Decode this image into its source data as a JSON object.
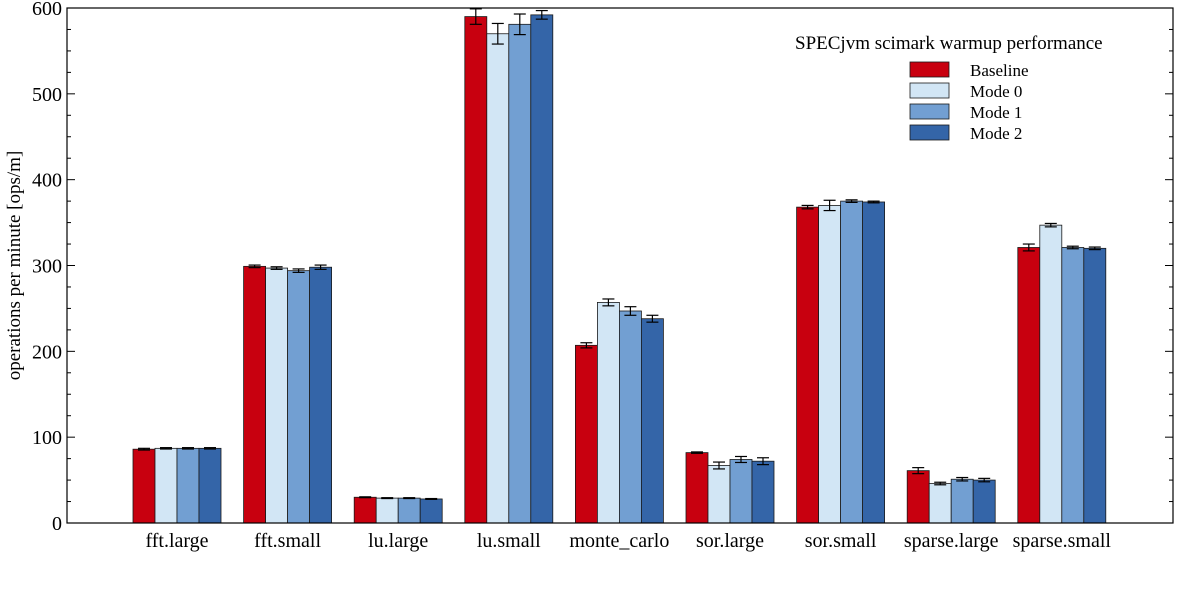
{
  "chart_data": {
    "type": "bar",
    "title": "",
    "legend_title": "SPECjvm scimark warmup performance",
    "legend_position": "top-right",
    "xlabel": "",
    "ylabel": "operations per minute [ops/m]",
    "ylim": [
      0,
      600
    ],
    "yticks": [
      0,
      100,
      200,
      300,
      400,
      500,
      600
    ],
    "grid": false,
    "categories": [
      "fft.large",
      "fft.small",
      "lu.large",
      "lu.small",
      "monte_carlo",
      "sor.large",
      "sor.small",
      "sparse.large",
      "sparse.small"
    ],
    "series": [
      {
        "name": "Baseline",
        "color": "#c8000f",
        "values": [
          86,
          299,
          30,
          590,
          207,
          82,
          368,
          61,
          321
        ],
        "errors": [
          1,
          1.5,
          0.5,
          9,
          3,
          0.8,
          2,
          3.5,
          4
        ]
      },
      {
        "name": "Mode 0",
        "color": "#d2e6f5",
        "values": [
          87,
          297,
          29,
          570,
          257,
          67,
          370,
          46,
          347
        ],
        "errors": [
          0.8,
          1.5,
          0.5,
          12,
          4,
          4,
          6,
          1.5,
          2
        ]
      },
      {
        "name": "Mode 1",
        "color": "#729fd2",
        "values": [
          87,
          294,
          29,
          581,
          247,
          74,
          375,
          51,
          321
        ],
        "errors": [
          0.8,
          2,
          0.5,
          12,
          5,
          3.5,
          1.5,
          2,
          1.5
        ]
      },
      {
        "name": "Mode 2",
        "color": "#3465a8",
        "values": [
          87,
          298,
          28,
          592,
          238,
          72,
          374,
          50,
          320
        ],
        "errors": [
          0.8,
          2.5,
          0.5,
          5,
          4,
          4,
          1,
          2,
          1.5
        ]
      }
    ]
  }
}
